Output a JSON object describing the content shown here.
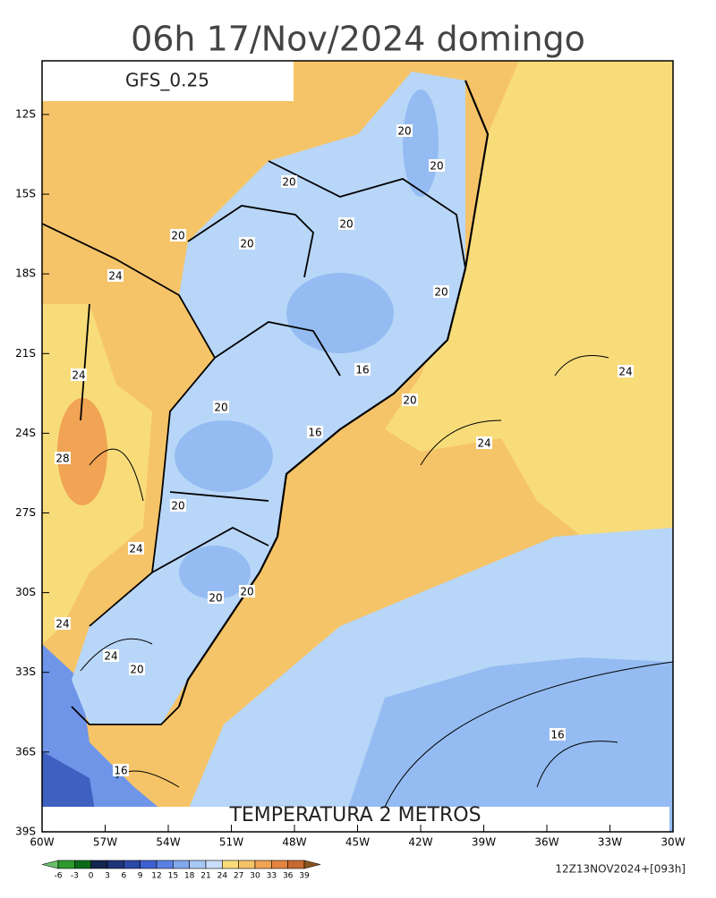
{
  "header": {
    "title": "06h 17/Nov/2024 domingo"
  },
  "map": {
    "model_label": "GFS_0.25",
    "variable_label": "TEMPERATURA 2 METROS",
    "lat_labels": [
      "12S",
      "15S",
      "18S",
      "21S",
      "24S",
      "27S",
      "30S",
      "33S",
      "36S",
      "39S"
    ],
    "lon_labels": [
      "60W",
      "57W",
      "54W",
      "51W",
      "48W",
      "45W",
      "42W",
      "39W",
      "36W",
      "33W",
      "30W"
    ],
    "contour_labels": [
      20,
      20,
      20,
      20,
      20,
      20,
      24,
      20,
      16,
      24,
      24,
      20,
      20,
      16,
      24,
      28,
      20,
      24,
      20,
      20,
      24,
      24,
      20,
      16,
      16
    ]
  },
  "colorbar": {
    "labels": [
      -6,
      -3,
      0,
      3,
      6,
      9,
      12,
      15,
      18,
      21,
      24,
      27,
      30,
      33,
      36,
      39
    ],
    "colors": [
      "#6cc06c",
      "#2e9a2e",
      "#0a6a1a",
      "#14264e",
      "#1e3478",
      "#2c48a8",
      "#3e60d0",
      "#5a80e4",
      "#82a8ee",
      "#a8c8f4",
      "#c8defa",
      "#f8dc7a",
      "#f5c468",
      "#f0a454",
      "#e48440",
      "#c86a30",
      "#8c5420"
    ]
  },
  "footer": {
    "run_label": "12Z13NOV2024+[093h]"
  }
}
